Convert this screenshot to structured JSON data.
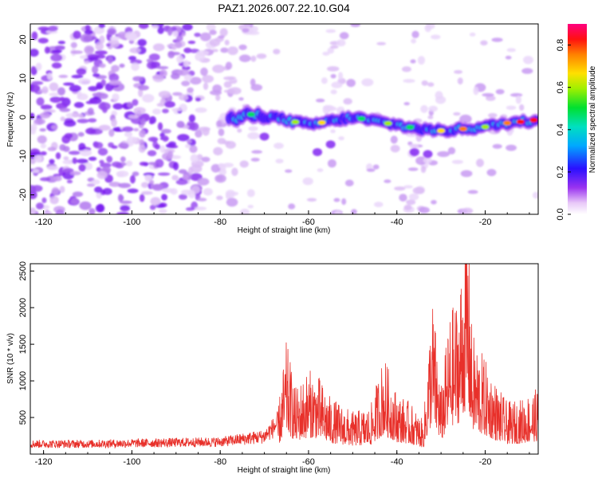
{
  "title": "PAZ1.2026.007.22.10.G04",
  "chart_data": [
    {
      "type": "heatmap",
      "xlabel": "Height of straight line (km)",
      "ylabel": "Frequency (Hz)",
      "xlim": [
        -123,
        -8
      ],
      "ylim": [
        -25,
        24
      ],
      "xticks": [
        -120,
        -100,
        -80,
        -60,
        -40,
        -20
      ],
      "yticks": [
        -20,
        -10,
        0,
        10,
        20
      ],
      "colorbar": {
        "label": "Normalized spectral amplitude",
        "range": [
          0.0,
          0.9
        ],
        "ticks": [
          0.0,
          0.2,
          0.4,
          0.6,
          0.8
        ]
      },
      "ridge": {
        "description": "dominant signal trace",
        "points": [
          [
            -75,
            1
          ],
          [
            -68,
            0
          ],
          [
            -60,
            -2
          ],
          [
            -55,
            -1
          ],
          [
            -50,
            0
          ],
          [
            -45,
            -1
          ],
          [
            -40,
            -2
          ],
          [
            -35,
            -3
          ],
          [
            -30,
            -3.5
          ],
          [
            -25,
            -3
          ],
          [
            -20,
            -2.5
          ],
          [
            -15,
            -1.5
          ],
          [
            -10,
            -1
          ],
          [
            -8,
            -0.5
          ]
        ]
      }
    },
    {
      "type": "line",
      "xlabel": "Height of straight line (km)",
      "ylabel": "SNR (10 * v/v)",
      "xlim": [
        -123,
        -8
      ],
      "ylim": [
        0,
        2600
      ],
      "xticks": [
        -120,
        -100,
        -80,
        -60,
        -40,
        -20
      ],
      "yticks": [
        500,
        1000,
        1500,
        2000,
        2500
      ],
      "series": [
        {
          "name": "SNR",
          "color": "#e8302a",
          "envelope_x": [
            -123,
            -110,
            -100,
            -90,
            -80,
            -75,
            -70,
            -67,
            -65,
            -63,
            -60,
            -58,
            -55,
            -50,
            -46,
            -43,
            -40,
            -37,
            -34,
            -32,
            -30,
            -28,
            -26,
            -24,
            -23,
            -22,
            -20,
            -17,
            -15,
            -12,
            -10,
            -8
          ],
          "envelope_y": [
            150,
            150,
            160,
            170,
            180,
            220,
            260,
            450,
            1200,
            700,
            900,
            850,
            600,
            450,
            500,
            1050,
            650,
            550,
            350,
            1700,
            700,
            1500,
            1700,
            2600,
            1300,
            1200,
            1000,
            700,
            550,
            580,
            650,
            700
          ]
        }
      ]
    }
  ]
}
